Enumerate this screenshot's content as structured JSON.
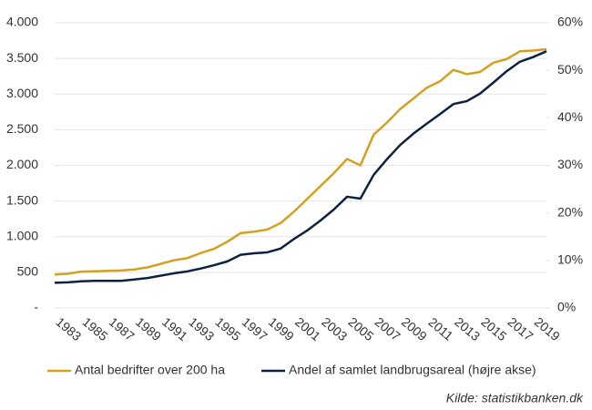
{
  "chart_data": {
    "type": "line",
    "categories": [
      null,
      "1983",
      null,
      "1985",
      null,
      "1987",
      null,
      "1989",
      null,
      "1991",
      null,
      "1993",
      null,
      "1995",
      null,
      "1997",
      null,
      "1999",
      null,
      "2001",
      null,
      "2003",
      null,
      "2005",
      null,
      "2007",
      null,
      "2009",
      null,
      "2011",
      null,
      "2013",
      null,
      "2015",
      null,
      "2017",
      null,
      "2019"
    ],
    "series": [
      {
        "name": "Antal bedrifter over 200 ha",
        "color": "#d4a020",
        "values": [
          470,
          480,
          510,
          515,
          520,
          525,
          540,
          570,
          620,
          670,
          700,
          770,
          830,
          930,
          1050,
          1070,
          1100,
          1190,
          1350,
          1530,
          1710,
          1890,
          2090,
          2000,
          2430,
          2600,
          2790,
          2940,
          3090,
          3180,
          3340,
          3280,
          3310,
          3440,
          3490,
          3600,
          3610,
          3630
        ]
      },
      {
        "name": "Andel af samlet landbrugsareal (højre akse)",
        "color": "#0d2240",
        "axis": "y2",
        "values": [
          5.3,
          5.4,
          5.6,
          5.7,
          5.7,
          5.7,
          6.0,
          6.3,
          6.8,
          7.3,
          7.7,
          8.3,
          9.0,
          9.8,
          11.2,
          11.5,
          11.7,
          12.5,
          14.5,
          16.3,
          18.4,
          20.7,
          23.4,
          23.0,
          28.0,
          31.3,
          34.3,
          36.7,
          38.8,
          40.8,
          42.9,
          43.5,
          45.1,
          47.4,
          49.8,
          51.8,
          52.8,
          54.0
        ]
      }
    ],
    "ylim": [
      0,
      4000
    ],
    "yticks": [
      {
        "value": 0,
        "label": "-"
      },
      500,
      {
        "value": 1000,
        "label": "1.000"
      },
      {
        "value": 1500,
        "label": "1.500"
      },
      {
        "value": 2000,
        "label": "2.000"
      },
      {
        "value": 2500,
        "label": "2.500"
      },
      {
        "value": 3000,
        "label": "3.000"
      },
      {
        "value": 3500,
        "label": "3.500"
      },
      {
        "value": 4000,
        "label": "4.000"
      }
    ],
    "y2lim": [
      0,
      60
    ],
    "y2ticks": [
      {
        "value": 0,
        "label": "0%"
      },
      {
        "value": 10,
        "label": "10%"
      },
      {
        "value": 20,
        "label": "20%"
      },
      {
        "value": 30,
        "label": "30%"
      },
      {
        "value": 40,
        "label": "40%"
      },
      {
        "value": 50,
        "label": "50%"
      },
      {
        "value": 60,
        "label": "60%"
      }
    ],
    "grid": true,
    "legend": "bottom",
    "annotation": "Kilde: statistikbanken.dk"
  }
}
